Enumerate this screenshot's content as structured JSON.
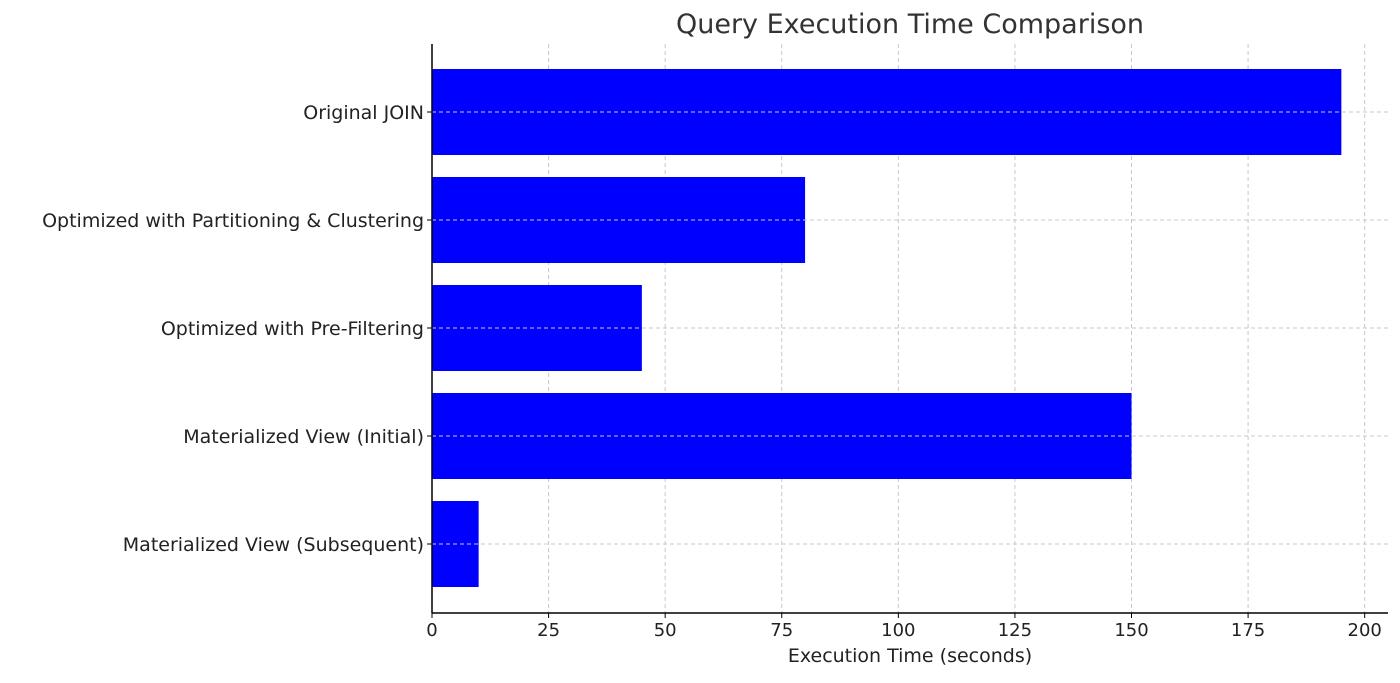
{
  "chart_data": {
    "type": "bar",
    "orientation": "horizontal",
    "title": "Query Execution Time Comparison",
    "xlabel": "Execution Time (seconds)",
    "ylabel": "",
    "categories": [
      "Original JOIN",
      "Optimized with Partitioning & Clustering",
      "Optimized with Pre-Filtering",
      "Materialized View (Initial)",
      "Materialized View (Subsequent)"
    ],
    "values": [
      195,
      80,
      45,
      150,
      10
    ],
    "xlim": [
      0,
      205
    ],
    "xticks": [
      0,
      25,
      50,
      75,
      100,
      125,
      150,
      175,
      200
    ],
    "grid": true,
    "legend": "none",
    "bar_color": "#0000ff",
    "grid_color": "#c8c8c8",
    "axis_color": "#000000",
    "text_color": "#222222",
    "title_color": "#333333"
  }
}
